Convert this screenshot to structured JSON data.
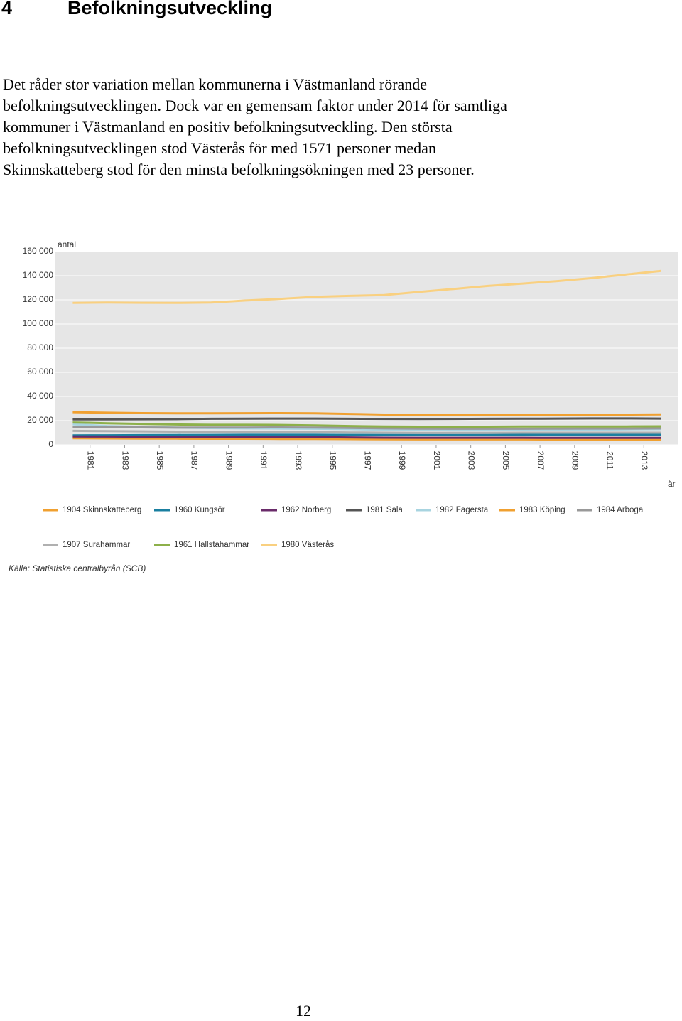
{
  "header": {
    "number": "4",
    "title": "Befolkningsutveckling"
  },
  "paragraph": [
    "Det råder stor variation mellan kommunerna i Västmanland rörande",
    "befolkningsutvecklingen. Dock var en gemensam faktor under 2014 för samtliga",
    "kommuner i Västmanland en positiv befolkningsutveckling. Den största",
    "befolkningsutvecklingen stod Västerås för med 1571 personer medan",
    "Skinnskatteberg stod för den minsta befolkningsökningen med 23 personer."
  ],
  "chart_data": {
    "type": "line",
    "y_label": "antal",
    "x_label": "år",
    "x": [
      1980,
      1982,
      1984,
      1986,
      1988,
      1990,
      1992,
      1994,
      1996,
      1998,
      2000,
      2002,
      2004,
      2006,
      2008,
      2010,
      2012,
      2014
    ],
    "xlim": [
      1979,
      2015
    ],
    "xticks": [
      1981,
      1983,
      1985,
      1987,
      1989,
      1991,
      1993,
      1995,
      1997,
      1999,
      2001,
      2003,
      2005,
      2007,
      2009,
      2011,
      2013
    ],
    "ylim": [
      0,
      160000
    ],
    "yticks": [
      0,
      {
        "value": 20000,
        "label": "20 000"
      },
      {
        "value": 40000,
        "label": "40 000"
      },
      {
        "value": 60000,
        "label": "60 000"
      },
      {
        "value": 80000,
        "label": "80 000"
      },
      {
        "value": 100000,
        "label": "100 000"
      },
      {
        "value": 120000,
        "label": "120 000"
      },
      {
        "value": 140000,
        "label": "140 000"
      },
      {
        "value": 160000,
        "label": "160 000"
      }
    ],
    "grid": true,
    "series": [
      {
        "name": "1904 Skinnskatteberg",
        "color": "#f0a030",
        "values": [
          5400,
          5300,
          5200,
          5100,
          5000,
          5000,
          4900,
          4800,
          4700,
          4600,
          4500,
          4500,
          4500,
          4500,
          4400,
          4400,
          4400,
          4400
        ]
      },
      {
        "name": "1960 Kungsör",
        "color": "#1a7fa0",
        "values": [
          7800,
          7900,
          8000,
          8100,
          8200,
          8300,
          8300,
          8300,
          8200,
          8100,
          8100,
          8100,
          8200,
          8300,
          8300,
          8400,
          8400,
          8400
        ]
      },
      {
        "name": "1962 Norberg",
        "color": "#6a2b6a",
        "values": [
          6900,
          6800,
          6700,
          6600,
          6500,
          6500,
          6400,
          6300,
          6100,
          5900,
          5800,
          5800,
          5800,
          5800,
          5700,
          5700,
          5700,
          5700
        ]
      },
      {
        "name": "1981 Sala",
        "color": "#555555",
        "values": [
          21000,
          21000,
          21100,
          21200,
          21500,
          21600,
          21700,
          21700,
          21500,
          21400,
          21300,
          21400,
          21500,
          21600,
          21700,
          21800,
          21800,
          21700
        ]
      },
      {
        "name": "1982 Fagersta",
        "color": "#a8d4e0",
        "values": [
          17000,
          15500,
          14800,
          14200,
          13800,
          13600,
          13500,
          13300,
          13000,
          12500,
          12200,
          12000,
          12000,
          12100,
          12300,
          12500,
          12800,
          13000
        ]
      },
      {
        "name": "1983 Köping",
        "color": "#f0a030",
        "values": [
          27000,
          26500,
          26200,
          26000,
          26000,
          26100,
          26200,
          26000,
          25500,
          25000,
          24800,
          24700,
          24700,
          24800,
          24900,
          25000,
          25000,
          25100
        ]
      },
      {
        "name": "1984 Arboga",
        "color": "#999999",
        "values": [
          15000,
          14700,
          14400,
          14200,
          14300,
          14300,
          14400,
          14300,
          14000,
          13600,
          13400,
          13300,
          13300,
          13300,
          13400,
          13500,
          13500,
          13600
        ]
      },
      {
        "name": "1907 Surahammar",
        "color": "#b0b0b0",
        "values": [
          11500,
          11300,
          11100,
          10900,
          10800,
          10800,
          10700,
          10500,
          10200,
          10000,
          9900,
          9900,
          9900,
          10000,
          10000,
          10000,
          10000,
          10000
        ]
      },
      {
        "name": "1961 Hallstahammar",
        "color": "#8db04a",
        "values": [
          18500,
          17800,
          17300,
          16800,
          16500,
          16500,
          16400,
          16000,
          15500,
          15100,
          15000,
          15000,
          15000,
          15100,
          15100,
          15200,
          15200,
          15300
        ]
      },
      {
        "name": "1980 Västerås",
        "color": "#f9d080",
        "values": [
          117500,
          117800,
          117600,
          117500,
          117800,
          119500,
          120800,
          122500,
          123300,
          124000,
          126500,
          129000,
          131500,
          133500,
          135500,
          138000,
          141000,
          144000
        ]
      }
    ],
    "source": "Källa: Statistiska centralbyrån (SCB)"
  },
  "page_number": "12"
}
